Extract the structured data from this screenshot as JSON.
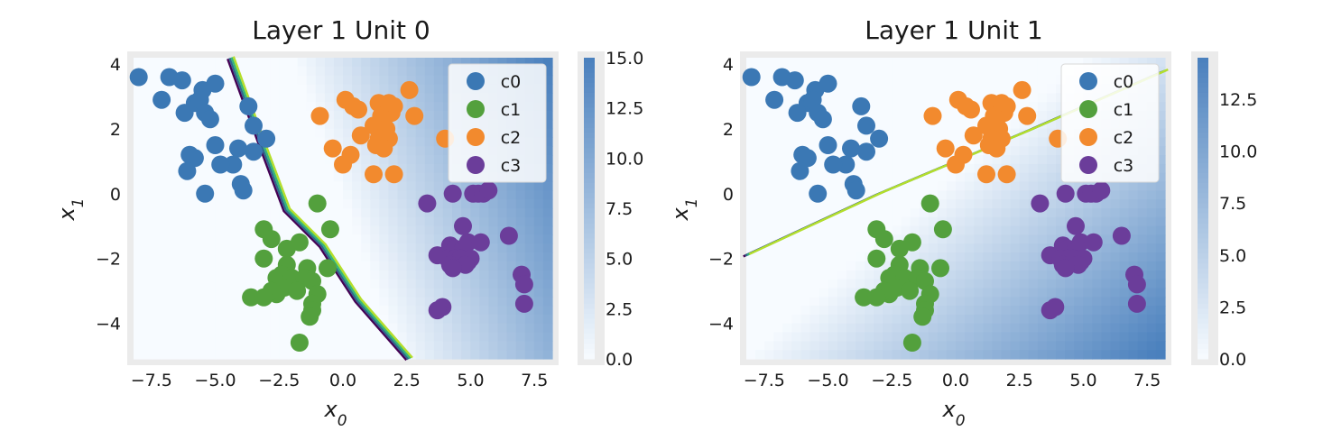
{
  "figure": {
    "background": "#ffffff",
    "frame_color": "#ebebeb"
  },
  "chart_data": [
    {
      "type": "scatter",
      "title": "Layer 1 Unit 0",
      "xlabel_base": "x",
      "xlabel_sub": "0",
      "ylabel_base": "x",
      "ylabel_sub": "1",
      "xlim": [
        -8.2,
        8.2
      ],
      "ylim": [
        -5.1,
        4.2
      ],
      "xticks": [
        -7.5,
        -5.0,
        -2.5,
        0.0,
        2.5,
        5.0,
        7.5
      ],
      "xtick_labels": [
        "−7.5",
        "−5.0",
        "−2.5",
        "0.0",
        "2.5",
        "5.0",
        "7.5"
      ],
      "yticks": [
        4,
        2,
        0,
        -2,
        -4
      ],
      "ytick_labels": [
        "4",
        "2",
        "0",
        "−2",
        "−4"
      ],
      "colorbar": {
        "min": 0,
        "max": 15,
        "ticks": [
          0,
          2.5,
          5,
          7.5,
          10,
          12.5,
          15
        ],
        "tick_labels": [
          "0.0",
          "2.5",
          "5.0",
          "7.5",
          "10.0",
          "12.5",
          "15.0"
        ]
      },
      "activation": {
        "w": [
          1.0,
          0.45
        ],
        "b": 0.1,
        "scale": 1.5,
        "vmax": 15
      },
      "boundary": [
        [
          -4.4,
          4.2
        ],
        [
          -3.2,
          1.6
        ],
        [
          -2.2,
          -0.5
        ],
        [
          -0.8,
          -1.6
        ],
        [
          0.6,
          -3.3
        ],
        [
          2.6,
          -5.1
        ]
      ],
      "legend_position": "top-right"
    },
    {
      "type": "scatter",
      "title": "Layer 1 Unit 1",
      "xlabel_base": "x",
      "xlabel_sub": "0",
      "ylabel_base": "x",
      "ylabel_sub": "1",
      "xlim": [
        -8.2,
        8.2
      ],
      "ylim": [
        -5.1,
        4.2
      ],
      "xticks": [
        -7.5,
        -5.0,
        -2.5,
        0.0,
        2.5,
        5.0,
        7.5
      ],
      "xtick_labels": [
        "−7.5",
        "−5.0",
        "−2.5",
        "0.0",
        "2.5",
        "5.0",
        "7.5"
      ],
      "yticks": [
        4,
        2,
        0,
        -2,
        -4
      ],
      "ytick_labels": [
        "4",
        "2",
        "0",
        "−2",
        "−4"
      ],
      "colorbar": {
        "min": 0,
        "max": 14.5,
        "ticks": [
          0,
          2.5,
          5,
          7.5,
          10,
          12.5
        ],
        "tick_labels": [
          "0.0",
          "2.5",
          "5.0",
          "7.5",
          "10.0",
          "12.5"
        ]
      },
      "activation": {
        "w": [
          0.7,
          -1.0
        ],
        "b": 0.7,
        "scale": 1.3,
        "vmax": 14.5
      },
      "boundary": [
        [
          -8.2,
          -1.9
        ],
        [
          -3.0,
          0.0
        ],
        [
          0.0,
          1.0
        ],
        [
          3.0,
          2.0
        ],
        [
          8.2,
          3.8
        ]
      ],
      "legend_position": "top-right"
    }
  ],
  "legend": [
    {
      "name": "c0",
      "color": "#3b78b4"
    },
    {
      "name": "c1",
      "color": "#53a03d"
    },
    {
      "name": "c2",
      "color": "#f28a2e"
    },
    {
      "name": "c3",
      "color": "#6b3d9a"
    }
  ],
  "boundary_colors": [
    "#440154",
    "#31688e",
    "#35b779",
    "#b5de2b"
  ],
  "colormap": [
    "#f7fbff",
    "#4a80bd"
  ],
  "points": {
    "c0": [
      [
        -8.0,
        3.6
      ],
      [
        -6.8,
        3.6
      ],
      [
        -6.3,
        3.5
      ],
      [
        -7.1,
        2.9
      ],
      [
        -5.5,
        3.2
      ],
      [
        -5.0,
        3.4
      ],
      [
        -5.8,
        2.8
      ],
      [
        -5.6,
        2.9
      ],
      [
        -6.2,
        2.5
      ],
      [
        -5.4,
        2.5
      ],
      [
        -5.2,
        2.3
      ],
      [
        -3.7,
        2.7
      ],
      [
        -3.5,
        2.1
      ],
      [
        -3.0,
        1.7
      ],
      [
        -5.0,
        1.5
      ],
      [
        -6.0,
        1.2
      ],
      [
        -4.1,
        1.4
      ],
      [
        -3.5,
        1.3
      ],
      [
        -5.8,
        1.1
      ],
      [
        -4.3,
        0.9
      ],
      [
        -6.1,
        0.7
      ],
      [
        -4.8,
        0.9
      ],
      [
        -4.0,
        0.3
      ],
      [
        -3.9,
        0.1
      ],
      [
        -5.4,
        0.0
      ]
    ],
    "c1": [
      [
        -3.1,
        -1.1
      ],
      [
        -1.0,
        -0.3
      ],
      [
        -0.5,
        -1.1
      ],
      [
        -2.8,
        -1.4
      ],
      [
        -1.7,
        -1.5
      ],
      [
        -2.2,
        -1.7
      ],
      [
        -3.1,
        -2.0
      ],
      [
        -2.2,
        -2.2
      ],
      [
        -2.4,
        -2.5
      ],
      [
        -1.4,
        -2.3
      ],
      [
        -0.6,
        -2.3
      ],
      [
        -2.6,
        -2.6
      ],
      [
        -2.0,
        -2.6
      ],
      [
        -1.5,
        -2.6
      ],
      [
        -1.2,
        -2.7
      ],
      [
        -2.3,
        -2.9
      ],
      [
        -1.8,
        -3.0
      ],
      [
        -2.6,
        -3.1
      ],
      [
        -2.8,
        -3.0
      ],
      [
        -1.0,
        -3.1
      ],
      [
        -3.6,
        -3.2
      ],
      [
        -3.1,
        -3.2
      ],
      [
        -1.2,
        -3.4
      ],
      [
        -1.2,
        -3.6
      ],
      [
        -1.3,
        -3.8
      ],
      [
        -1.7,
        -4.6
      ]
    ],
    "c2": [
      [
        -0.9,
        2.4
      ],
      [
        0.1,
        2.9
      ],
      [
        0.4,
        2.7
      ],
      [
        0.6,
        2.6
      ],
      [
        1.4,
        2.8
      ],
      [
        1.8,
        2.8
      ],
      [
        2.0,
        2.7
      ],
      [
        2.6,
        3.2
      ],
      [
        1.5,
        2.4
      ],
      [
        2.8,
        2.4
      ],
      [
        1.9,
        2.5
      ],
      [
        1.6,
        2.3
      ],
      [
        1.2,
        2.1
      ],
      [
        1.7,
        2.0
      ],
      [
        0.7,
        1.8
      ],
      [
        1.4,
        1.7
      ],
      [
        1.8,
        1.7
      ],
      [
        1.3,
        1.5
      ],
      [
        -0.4,
        1.4
      ],
      [
        1.6,
        1.4
      ],
      [
        0.3,
        1.2
      ],
      [
        0.0,
        0.9
      ],
      [
        4.0,
        1.7
      ],
      [
        1.2,
        0.6
      ],
      [
        2.0,
        0.6
      ]
    ],
    "c3": [
      [
        3.3,
        -0.3
      ],
      [
        4.3,
        0.0
      ],
      [
        5.1,
        0.0
      ],
      [
        5.3,
        0.0
      ],
      [
        5.5,
        0.0
      ],
      [
        5.7,
        0.1
      ],
      [
        4.7,
        -1.0
      ],
      [
        6.5,
        -1.3
      ],
      [
        3.7,
        -1.9
      ],
      [
        4.2,
        -1.6
      ],
      [
        4.4,
        -1.7
      ],
      [
        4.7,
        -1.7
      ],
      [
        4.9,
        -1.5
      ],
      [
        5.4,
        -1.5
      ],
      [
        4.1,
        -2.0
      ],
      [
        4.4,
        -2.0
      ],
      [
        4.6,
        -2.0
      ],
      [
        4.9,
        -2.1
      ],
      [
        5.0,
        -2.0
      ],
      [
        4.2,
        -2.2
      ],
      [
        4.8,
        -2.2
      ],
      [
        4.3,
        -2.3
      ],
      [
        7.0,
        -2.5
      ],
      [
        7.1,
        -2.8
      ],
      [
        3.9,
        -3.5
      ],
      [
        3.7,
        -3.6
      ],
      [
        7.1,
        -3.4
      ]
    ]
  }
}
